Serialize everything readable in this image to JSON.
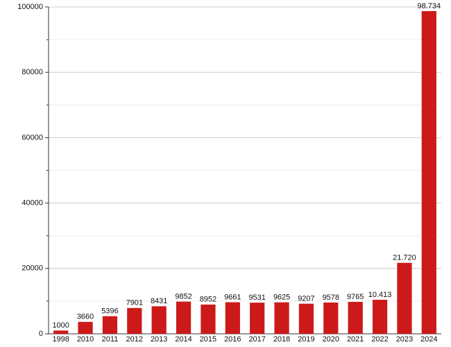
{
  "chart_data": {
    "type": "bar",
    "categories": [
      "1998",
      "2010",
      "2011",
      "2012",
      "2013",
      "2014",
      "2015",
      "2016",
      "2017",
      "2018",
      "2019",
      "2020",
      "2021",
      "2022",
      "2023",
      "2024"
    ],
    "values": [
      1000,
      3660,
      5396,
      7901,
      8431,
      9852,
      8952,
      9661,
      9531,
      9625,
      9207,
      9578,
      9765,
      10413,
      21720,
      98734
    ],
    "value_labels": [
      "1000",
      "3660",
      "5396",
      "7901",
      "8431",
      "9852",
      "8952",
      "9661",
      "9531",
      "9625",
      "9207",
      "9578",
      "9765",
      "10.413",
      "21.720",
      "98.734"
    ],
    "color": "#cc1a1a",
    "ylim": [
      0,
      100000
    ],
    "yticks": [
      0,
      20000,
      40000,
      60000,
      80000,
      100000
    ],
    "yminor_ticks": [
      10000,
      30000,
      50000,
      70000,
      90000
    ],
    "grid": true
  }
}
